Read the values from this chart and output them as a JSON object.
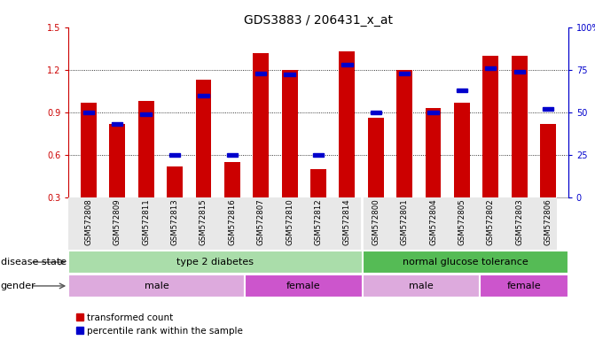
{
  "title": "GDS3883 / 206431_x_at",
  "samples": [
    "GSM572808",
    "GSM572809",
    "GSM572811",
    "GSM572813",
    "GSM572815",
    "GSM572816",
    "GSM572807",
    "GSM572810",
    "GSM572812",
    "GSM572814",
    "GSM572800",
    "GSM572801",
    "GSM572804",
    "GSM572805",
    "GSM572802",
    "GSM572803",
    "GSM572806"
  ],
  "bar_values": [
    0.97,
    0.82,
    0.98,
    0.52,
    1.13,
    0.55,
    1.32,
    1.2,
    0.5,
    1.33,
    0.86,
    1.2,
    0.93,
    0.97,
    1.3,
    1.3,
    0.82
  ],
  "percentile_values": [
    50,
    43,
    49,
    25,
    60,
    25,
    73,
    72,
    25,
    78,
    50,
    73,
    50,
    63,
    76,
    74,
    52
  ],
  "ymin": 0.3,
  "ymax": 1.5,
  "yticks_left": [
    0.3,
    0.6,
    0.9,
    1.2,
    1.5
  ],
  "yticks_right": [
    0,
    25,
    50,
    75,
    100
  ],
  "bar_color": "#cc0000",
  "percentile_color": "#0000cc",
  "disease_state_groups": [
    {
      "label": "type 2 diabetes",
      "start": 0,
      "end": 10,
      "color": "#aaddaa"
    },
    {
      "label": "normal glucose tolerance",
      "start": 10,
      "end": 17,
      "color": "#55bb55"
    }
  ],
  "gender_groups": [
    {
      "label": "male",
      "start": 0,
      "end": 6,
      "color": "#ddaadd"
    },
    {
      "label": "female",
      "start": 6,
      "end": 10,
      "color": "#cc55cc"
    },
    {
      "label": "male",
      "start": 10,
      "end": 14,
      "color": "#ddaadd"
    },
    {
      "label": "female",
      "start": 14,
      "end": 17,
      "color": "#cc55cc"
    }
  ],
  "left_axis_color": "#cc0000",
  "right_axis_color": "#0000cc",
  "dotted_lines": [
    0.6,
    0.9,
    1.2
  ],
  "label_fontsize": 8,
  "tick_fontsize": 7,
  "bar_width": 0.55
}
